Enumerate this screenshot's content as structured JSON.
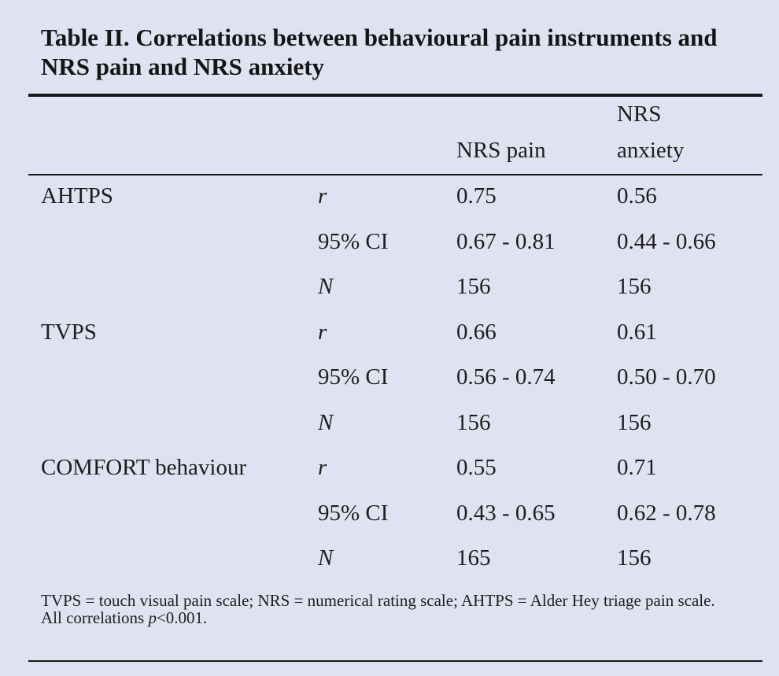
{
  "title": "Table II. Correlations between behavioural pain instruments and NRS pain and NRS anxiety",
  "columns": {
    "pain": "NRS pain",
    "anxiety_line1": "NRS",
    "anxiety_line2": "anxiety"
  },
  "groups": [
    {
      "label": "AHTPS",
      "rows": [
        {
          "stat": "r",
          "pain": "0.75",
          "anxiety": "0.56"
        },
        {
          "stat": "95% CI",
          "pain": "0.67 - 0.81",
          "anxiety": "0.44 - 0.66"
        },
        {
          "stat": "N",
          "pain": "156",
          "anxiety": "156"
        }
      ]
    },
    {
      "label": "TVPS",
      "rows": [
        {
          "stat": "r",
          "pain": "0.66",
          "anxiety": "0.61"
        },
        {
          "stat": "95% CI",
          "pain": "0.56 - 0.74",
          "anxiety": "0.50 - 0.70"
        },
        {
          "stat": "N",
          "pain": "156",
          "anxiety": "156"
        }
      ]
    },
    {
      "label": "COMFORT behaviour",
      "rows": [
        {
          "stat": "r",
          "pain": "0.55",
          "anxiety": "0.71"
        },
        {
          "stat": "95% CI",
          "pain": "0.43 - 0.65",
          "anxiety": "0.62 - 0.78"
        },
        {
          "stat": "N",
          "pain": "165",
          "anxiety": "156"
        }
      ]
    }
  ],
  "footnote": {
    "line1": "TVPS = touch visual pain scale; NRS = numerical rating scale; AHTPS = Alder Hey triage pain scale.",
    "line2_prefix": "All correlations ",
    "line2_p": "p",
    "line2_suffix": "<0.001."
  },
  "colors": {
    "background": "#dfe3f1",
    "text": "#1e1e1e",
    "rule": "#1a1a1a"
  }
}
